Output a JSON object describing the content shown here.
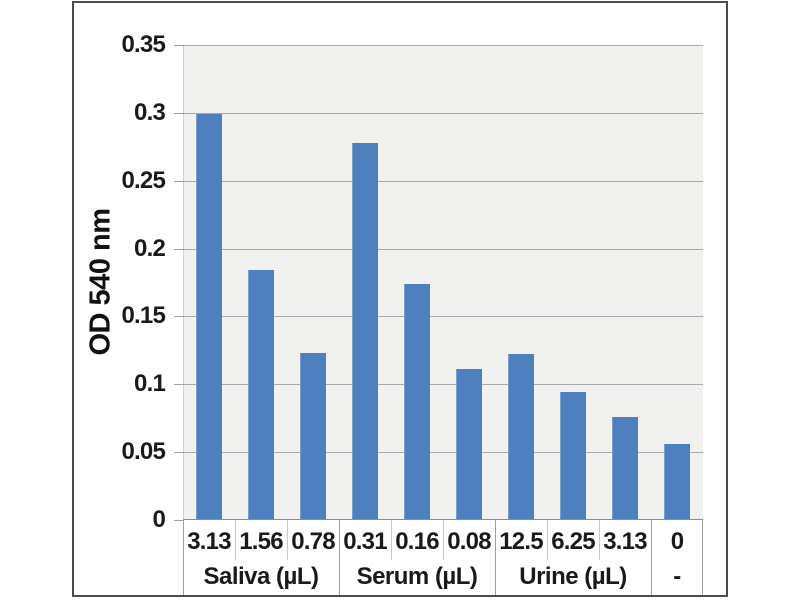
{
  "chart_data": {
    "type": "bar",
    "title": "",
    "ylabel": "OD 540 nm",
    "xlabel": "",
    "ylim": [
      0,
      0.35
    ],
    "ytick_step": 0.05,
    "ytick_labels": [
      "0.35",
      "0.3",
      "0.25",
      "0.2",
      "0.15",
      "0.1",
      "0.05",
      "0"
    ],
    "groups": [
      {
        "label": "Saliva (µL)",
        "categories": [
          "3.13",
          "1.56",
          "0.78"
        ],
        "values": [
          0.299,
          0.184,
          0.123
        ]
      },
      {
        "label": "Serum (µL)",
        "categories": [
          "0.31",
          "0.16",
          "0.08"
        ],
        "values": [
          0.278,
          0.174,
          0.111
        ]
      },
      {
        "label": "Urine (µL)",
        "categories": [
          "12.5",
          "6.25",
          "3.13"
        ],
        "values": [
          0.122,
          0.094,
          0.076
        ]
      },
      {
        "label": "-",
        "categories": [
          "0"
        ],
        "values": [
          0.056
        ]
      }
    ],
    "bar_color": "#4e7fbe",
    "plot_background": "#f1f1ef",
    "gridline_color": "#a9a9a9",
    "grid": "horizontal",
    "legend": "none"
  }
}
